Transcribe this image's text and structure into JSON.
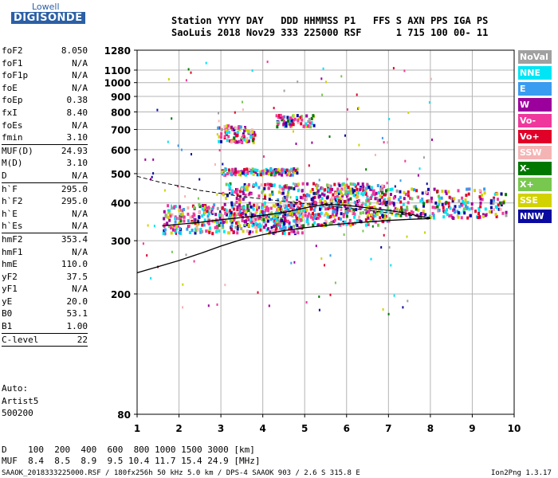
{
  "logo": {
    "top": "Lowell",
    "bottom": "DIGISONDE"
  },
  "header": {
    "line1": "Station YYYY DAY   DDD HHMMSS P1   FFS S AXN PPS IGA PS",
    "line2": "SaoLuis 2018 Nov29 333 225000 RSF      1 715 100 00- 11"
  },
  "params": [
    {
      "name": "foF2",
      "value": "8.050"
    },
    {
      "name": "foF1",
      "value": "N/A"
    },
    {
      "name": "foF1p",
      "value": "N/A"
    },
    {
      "name": "foE",
      "value": "N/A"
    },
    {
      "name": "foEp",
      "value": "0.38"
    },
    {
      "name": "fxI",
      "value": "8.40"
    },
    {
      "name": "foEs",
      "value": "N/A"
    },
    {
      "name": "fmin",
      "value": "3.10",
      "sep": true
    },
    {
      "name": "MUF(D)",
      "value": "24.93"
    },
    {
      "name": "M(D)",
      "value": "3.10"
    },
    {
      "name": "D",
      "value": "N/A",
      "sep": true
    },
    {
      "name": "h`F",
      "value": "295.0"
    },
    {
      "name": "h`F2",
      "value": "295.0"
    },
    {
      "name": "h`E",
      "value": "N/A"
    },
    {
      "name": "h`Es",
      "value": "N/A",
      "sep": true
    },
    {
      "name": "hmF2",
      "value": "353.4"
    },
    {
      "name": "hmF1",
      "value": "N/A"
    },
    {
      "name": "hmE",
      "value": "110.0"
    },
    {
      "name": "yF2",
      "value": "37.5"
    },
    {
      "name": "yF1",
      "value": "N/A"
    },
    {
      "name": "yE",
      "value": "20.0"
    },
    {
      "name": "B0",
      "value": "53.1"
    },
    {
      "name": "B1",
      "value": "1.00",
      "sep": true
    },
    {
      "name": "C-level",
      "value": "22",
      "sep": true
    }
  ],
  "auto": {
    "line1": "Auto:",
    "line2": "Artist5",
    "line3": "500200"
  },
  "legend": [
    {
      "label": "NoVal",
      "color": "#a0a0a0"
    },
    {
      "label": "NNE",
      "color": "#00e5f5"
    },
    {
      "label": "E",
      "color": "#3a9cf0"
    },
    {
      "label": "W",
      "color": "#9c009c"
    },
    {
      "label": "Vo-",
      "color": "#f0389c"
    },
    {
      "label": "Vo+",
      "color": "#e00028"
    },
    {
      "label": "SSW",
      "color": "#f5b4b4"
    },
    {
      "label": "X-",
      "color": "#007800"
    },
    {
      "label": "X+",
      "color": "#78c850"
    },
    {
      "label": "SSE",
      "color": "#d2d200"
    },
    {
      "label": "NNW",
      "color": "#0a0aa0"
    }
  ],
  "mufTable": {
    "row1": "D    100  200  400  600  800 1000 1500 3000 [km]",
    "row2": "MUF  8.4  8.5  8.9  9.5 10.4 11.7 15.4 24.9 [MHz]"
  },
  "footer": {
    "left": "SAAOK_2018333225000.RSF / 180fx256h 50 kHz 5.0 km / DPS-4 SAAOK 903 / 2.6 S 315.8 E",
    "right": "Ion2Png 1.3.17"
  },
  "chart_data": {
    "type": "scatter",
    "title": "",
    "xlabel": "",
    "ylabel": "",
    "xlim": [
      1,
      10
    ],
    "ylim": [
      80,
      1280
    ],
    "y_scale": "log",
    "x_ticks": [
      "1",
      "2",
      "3",
      "4",
      "5",
      "6",
      "7",
      "8",
      "9",
      "10"
    ],
    "y_ticks": [
      "80",
      "200",
      "300",
      "400",
      "500",
      "600",
      "700",
      "800",
      "900",
      "1000",
      "1100",
      "1280"
    ],
    "grid": true,
    "legend_position": "right",
    "clusters": [
      {
        "name": "o-trace",
        "x_range": [
          1.6,
          5.0
        ],
        "y_range": [
          320,
          400
        ]
      },
      {
        "name": "x-trace",
        "x_range": [
          3.0,
          7.0
        ],
        "y_range": [
          340,
          470
        ]
      },
      {
        "name": "F-trace",
        "x_range": [
          5.0,
          9.8
        ],
        "y_range": [
          360,
          450
        ]
      },
      {
        "name": "band-510",
        "x_range": [
          3.0,
          4.8
        ],
        "y_range": [
          500,
          525
        ]
      },
      {
        "name": "patch-700",
        "x_range": [
          2.9,
          3.8
        ],
        "y_range": [
          640,
          730
        ]
      },
      {
        "name": "patch-750",
        "x_range": [
          4.3,
          5.2
        ],
        "y_range": [
          720,
          790
        ]
      }
    ],
    "profile_solid": {
      "x": [
        1,
        1.5,
        2,
        2.5,
        3,
        3.5,
        4,
        4.5,
        5,
        5.5,
        6,
        6.5,
        7,
        7.5,
        8
      ],
      "y": [
        235,
        246,
        258,
        272,
        288,
        303,
        314,
        324,
        331,
        337,
        342,
        346,
        350,
        353,
        355
      ]
    },
    "profile_dashed": {
      "x": [
        1,
        1.5,
        2,
        2.5,
        3,
        3.5,
        4,
        4.5,
        5,
        5.5,
        6,
        6.5,
        7,
        7.5,
        8
      ],
      "y": [
        490,
        470,
        455,
        440,
        430,
        420,
        412,
        405,
        398,
        392,
        385,
        378,
        371,
        364,
        358
      ]
    },
    "profile_trace": {
      "x": [
        1.6,
        2,
        2.5,
        3,
        3.5,
        4,
        4.5,
        5,
        5.5,
        6,
        6.5,
        7,
        7.5,
        8
      ],
      "y": [
        336,
        340,
        345,
        352,
        358,
        364,
        372,
        385,
        396,
        393,
        385,
        378,
        368,
        355
      ]
    }
  }
}
